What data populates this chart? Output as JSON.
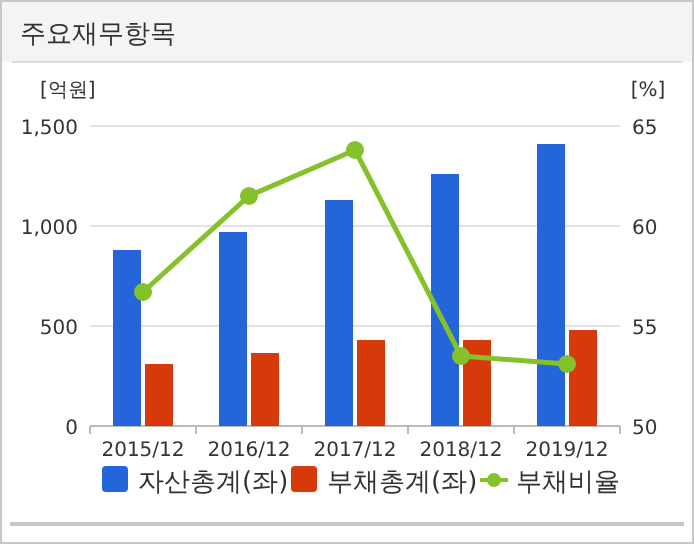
{
  "chart_data": {
    "type": "bar",
    "title": "주요재무항목",
    "ylabel": "[억원]",
    "y2label": "[%]",
    "categories": [
      "2015/12",
      "2016/12",
      "2017/12",
      "2018/12",
      "2019/12"
    ],
    "series": [
      {
        "name": "자산총계(좌)",
        "color": "#2465d9",
        "values": [
          880,
          970,
          1130,
          1260,
          1410
        ]
      },
      {
        "name": "부채총계(좌)",
        "color": "#d63a0a",
        "values": [
          310,
          365,
          430,
          430,
          480
        ]
      },
      {
        "name": "부채비율",
        "type": "line",
        "axis": "y2",
        "color": "#84c12a",
        "marker": "circle",
        "values": [
          56.7,
          61.5,
          63.8,
          53.5,
          53.1
        ]
      }
    ],
    "ylim": [
      0,
      1500
    ],
    "yticks": [
      0,
      {
        "value": 500,
        "label": "500"
      },
      {
        "value": 1000,
        "label": "1,000"
      },
      {
        "value": 1500,
        "label": "1,500"
      }
    ],
    "y2lim": [
      50,
      65
    ],
    "y2ticks": [
      50,
      55,
      60,
      65
    ],
    "grid": "y",
    "legend": "bottom"
  }
}
